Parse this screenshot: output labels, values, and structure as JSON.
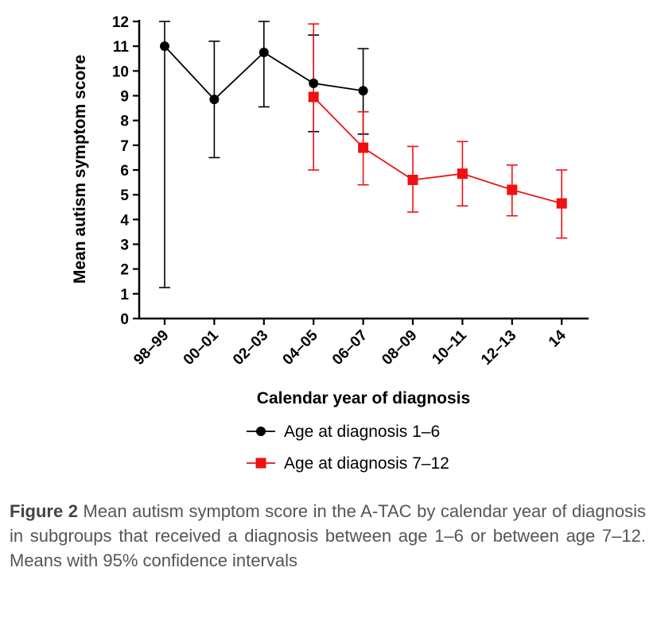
{
  "chart_data": {
    "type": "line",
    "ylabel": "Mean autism symptom score",
    "xlabel": "Calendar year of diagnosis",
    "ylim": [
      0,
      12
    ],
    "yticks": [
      0,
      1,
      2,
      3,
      4,
      5,
      6,
      7,
      8,
      9,
      10,
      11,
      12
    ],
    "categories": [
      "98–99",
      "00–01",
      "02–03",
      "04–05",
      "06–07",
      "08–09",
      "10–11",
      "12–13",
      "14"
    ],
    "series": [
      {
        "name": "Age at diagnosis 1–6",
        "color": "#000000",
        "marker": "circle",
        "x": [
          "98–99",
          "00–01",
          "02–03",
          "04–05",
          "06–07"
        ],
        "values": [
          11.0,
          8.85,
          10.75,
          9.5,
          9.2
        ],
        "ci_low": [
          1.25,
          6.5,
          8.55,
          7.55,
          7.45
        ],
        "ci_high": [
          12.0,
          11.2,
          12.0,
          11.45,
          10.9
        ]
      },
      {
        "name": "Age at diagnosis 7–12",
        "color": "#ee1111",
        "marker": "square",
        "x": [
          "04–05",
          "06–07",
          "08–09",
          "10–11",
          "12–13",
          "14"
        ],
        "values": [
          8.95,
          6.9,
          5.6,
          5.85,
          5.2,
          4.65
        ],
        "ci_low": [
          6.0,
          5.4,
          4.3,
          4.55,
          4.15,
          3.25
        ],
        "ci_high": [
          11.9,
          8.35,
          6.95,
          7.15,
          6.2,
          6.0
        ]
      }
    ],
    "legend": "bottom",
    "grid": false
  },
  "caption": {
    "label": "Figure 2",
    "text": " Mean autism symptom score in the A-TAC by calendar year of diagnosis in subgroups that received a diagnosis between age 1–6 or between age 7–12. Means with 95% confidence intervals"
  }
}
